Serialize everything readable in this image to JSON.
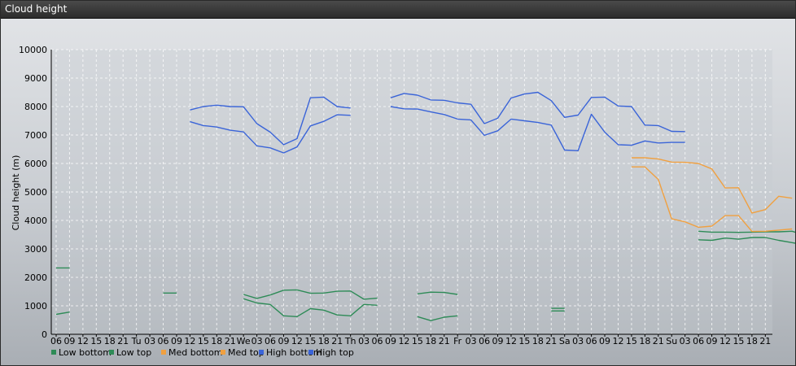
{
  "window": {
    "title": "Cloud height"
  },
  "chart_data": {
    "type": "line",
    "title": "",
    "xlabel": "",
    "ylabel": "Cloud height (m)",
    "ylim": [
      0,
      10000
    ],
    "yticks": [
      0,
      1000,
      2000,
      3000,
      4000,
      5000,
      6000,
      7000,
      8000,
      9000,
      10000
    ],
    "xticks": [
      "06",
      "09",
      "12",
      "15",
      "18",
      "21",
      "Tu",
      "03",
      "06",
      "09",
      "12",
      "15",
      "18",
      "21",
      "We",
      "03",
      "06",
      "09",
      "12",
      "15",
      "18",
      "21",
      "Th",
      "03",
      "06",
      "09",
      "12",
      "15",
      "18",
      "21",
      "Fr",
      "03",
      "06",
      "09",
      "12",
      "15",
      "18",
      "21",
      "Sa",
      "03",
      "06",
      "09",
      "12",
      "15",
      "18",
      "21",
      "Su",
      "03",
      "06",
      "09",
      "12",
      "15",
      "18",
      "21"
    ],
    "grid": true,
    "legend_position": "bottom-left",
    "colors": {
      "low": "#2e8b57",
      "med": "#f0a040",
      "high": "#3a64d8"
    },
    "series": [
      {
        "name": "Low bottom",
        "color": "#2e8b57",
        "segments": [
          [
            [
              0,
              700
            ],
            [
              1,
              780
            ]
          ],
          [
            [
              14,
              1250
            ],
            [
              15,
              1100
            ],
            [
              16,
              1050
            ],
            [
              17,
              650
            ],
            [
              18,
              620
            ],
            [
              19,
              900
            ],
            [
              20,
              850
            ],
            [
              21,
              680
            ],
            [
              22,
              650
            ],
            [
              23,
              1050
            ],
            [
              24,
              1020
            ]
          ],
          [
            [
              27,
              620
            ],
            [
              28,
              480
            ],
            [
              29,
              600
            ],
            [
              30,
              650
            ]
          ],
          [
            [
              37,
              820
            ],
            [
              38,
              820
            ]
          ],
          [
            [
              48,
              3320
            ],
            [
              49,
              3300
            ],
            [
              50,
              3380
            ],
            [
              51,
              3340
            ],
            [
              52,
              3400
            ],
            [
              53,
              3400
            ],
            [
              54,
              3300
            ],
            [
              55,
              3220
            ],
            [
              56,
              3130
            ],
            [
              57,
              3120
            ]
          ]
        ]
      },
      {
        "name": "Low top",
        "color": "#2e8b57",
        "segments": [
          [
            [
              0,
              2330
            ],
            [
              1,
              2330
            ]
          ],
          [
            [
              8,
              1450
            ],
            [
              9,
              1450
            ]
          ],
          [
            [
              14,
              1400
            ],
            [
              15,
              1260
            ],
            [
              16,
              1380
            ],
            [
              17,
              1550
            ],
            [
              18,
              1560
            ],
            [
              19,
              1440
            ],
            [
              20,
              1450
            ],
            [
              21,
              1510
            ],
            [
              22,
              1520
            ],
            [
              23,
              1230
            ],
            [
              24,
              1270
            ]
          ],
          [
            [
              27,
              1420
            ],
            [
              28,
              1480
            ],
            [
              29,
              1470
            ],
            [
              30,
              1400
            ]
          ],
          [
            [
              37,
              910
            ],
            [
              38,
              910
            ]
          ],
          [
            [
              48,
              3620
            ],
            [
              49,
              3590
            ],
            [
              50,
              3590
            ],
            [
              51,
              3580
            ],
            [
              52,
              3590
            ],
            [
              53,
              3600
            ],
            [
              54,
              3600
            ],
            [
              55,
              3620
            ],
            [
              56,
              3470
            ],
            [
              57,
              3450
            ]
          ]
        ]
      },
      {
        "name": "Med bottom",
        "color": "#f0a040",
        "segments": [
          [
            [
              43,
              5880
            ],
            [
              44,
              5880
            ],
            [
              45,
              5440
            ],
            [
              46,
              4060
            ],
            [
              47,
              3950
            ],
            [
              48,
              3760
            ],
            [
              49,
              3800
            ],
            [
              50,
              4170
            ],
            [
              51,
              4170
            ],
            [
              52,
              3610
            ],
            [
              53,
              3620
            ],
            [
              54,
              3660
            ],
            [
              55,
              3700
            ]
          ]
        ]
      },
      {
        "name": "Med top",
        "color": "#f0a040",
        "segments": [
          [
            [
              43,
              6200
            ],
            [
              44,
              6200
            ],
            [
              45,
              6160
            ],
            [
              46,
              6050
            ],
            [
              47,
              6040
            ],
            [
              48,
              6000
            ],
            [
              49,
              5810
            ],
            [
              50,
              5140
            ],
            [
              51,
              5150
            ],
            [
              52,
              4260
            ],
            [
              53,
              4380
            ],
            [
              54,
              4850
            ],
            [
              55,
              4780
            ]
          ]
        ]
      },
      {
        "name": "High bottom",
        "color": "#3a64d8",
        "segments": [
          [
            [
              10,
              7470
            ],
            [
              11,
              7330
            ],
            [
              12,
              7280
            ],
            [
              13,
              7170
            ],
            [
              14,
              7110
            ],
            [
              15,
              6620
            ],
            [
              16,
              6550
            ],
            [
              17,
              6370
            ],
            [
              18,
              6580
            ],
            [
              19,
              7320
            ],
            [
              20,
              7480
            ],
            [
              21,
              7710
            ],
            [
              22,
              7690
            ]
          ],
          [
            [
              25,
              8000
            ],
            [
              26,
              7920
            ],
            [
              27,
              7910
            ],
            [
              28,
              7810
            ],
            [
              29,
              7720
            ],
            [
              30,
              7560
            ],
            [
              31,
              7530
            ],
            [
              32,
              6990
            ],
            [
              33,
              7150
            ],
            [
              34,
              7560
            ],
            [
              35,
              7500
            ],
            [
              36,
              7440
            ],
            [
              37,
              7350
            ],
            [
              38,
              6470
            ],
            [
              39,
              6450
            ],
            [
              40,
              7730
            ],
            [
              41,
              7100
            ],
            [
              42,
              6660
            ],
            [
              43,
              6640
            ],
            [
              44,
              6790
            ],
            [
              45,
              6720
            ],
            [
              46,
              6740
            ],
            [
              47,
              6740
            ]
          ]
        ]
      },
      {
        "name": "High top",
        "color": "#3a64d8",
        "segments": [
          [
            [
              10,
              7880
            ],
            [
              11,
              8000
            ],
            [
              12,
              8050
            ],
            [
              13,
              8000
            ],
            [
              14,
              7990
            ],
            [
              15,
              7400
            ],
            [
              16,
              7100
            ],
            [
              17,
              6660
            ],
            [
              18,
              6870
            ],
            [
              19,
              8310
            ],
            [
              20,
              8330
            ],
            [
              21,
              8000
            ],
            [
              22,
              7950
            ]
          ],
          [
            [
              25,
              8310
            ],
            [
              26,
              8460
            ],
            [
              27,
              8400
            ],
            [
              28,
              8230
            ],
            [
              29,
              8220
            ],
            [
              30,
              8130
            ],
            [
              31,
              8080
            ],
            [
              32,
              7400
            ],
            [
              33,
              7590
            ],
            [
              34,
              8300
            ],
            [
              35,
              8440
            ],
            [
              36,
              8500
            ],
            [
              37,
              8210
            ],
            [
              38,
              7620
            ],
            [
              39,
              7700
            ],
            [
              40,
              8320
            ],
            [
              41,
              8330
            ],
            [
              42,
              8020
            ],
            [
              43,
              8000
            ],
            [
              44,
              7350
            ],
            [
              45,
              7330
            ],
            [
              46,
              7130
            ],
            [
              47,
              7120
            ]
          ]
        ]
      }
    ]
  }
}
